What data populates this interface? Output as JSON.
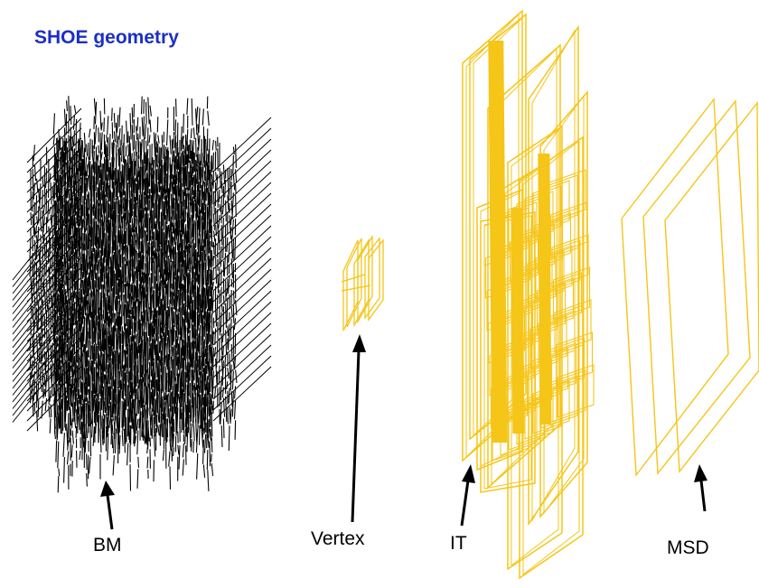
{
  "title": "SHOE geometry",
  "colors": {
    "title": "#1c2fc4",
    "detector": "#f5c518",
    "beam_monitor": "#000000"
  },
  "labels": {
    "bm": "BM",
    "vertex": "Vertex",
    "it": "IT",
    "msd": "MSD"
  }
}
